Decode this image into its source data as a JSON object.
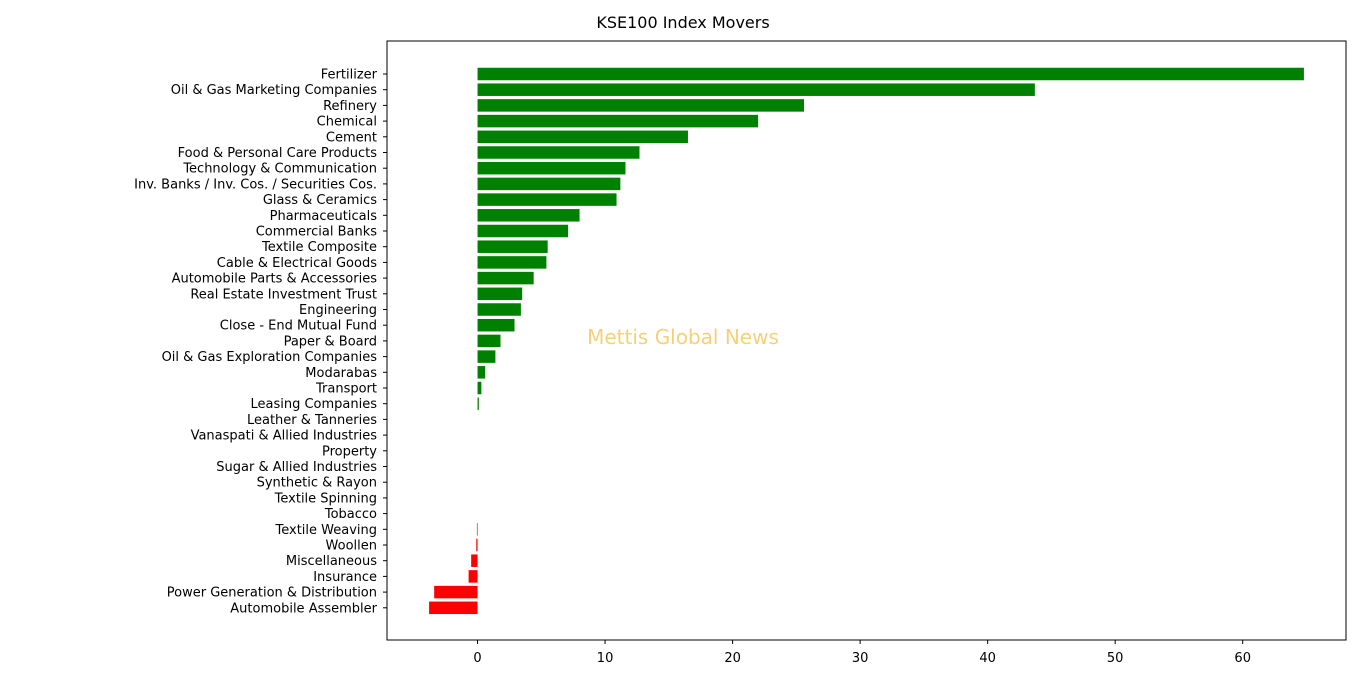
{
  "chart_data": {
    "type": "bar",
    "orientation": "horizontal",
    "title": "KSE100 Index Movers",
    "watermark": "Mettis Global News",
    "xlabel": "",
    "ylabel": "",
    "xlim": [
      -7.1,
      68.1
    ],
    "xticks": [
      0,
      10,
      20,
      30,
      40,
      50,
      60
    ],
    "grid": false,
    "legend": "none",
    "colors": {
      "positive": "#008000",
      "negative": "#ff0000",
      "axis": "#000000",
      "background": "#ffffff"
    },
    "categories": [
      "Fertilizer",
      "Oil & Gas Marketing Companies",
      "Refinery",
      "Chemical",
      "Cement",
      "Food & Personal Care Products",
      "Technology & Communication",
      "Inv. Banks / Inv. Cos. / Securities Cos.",
      "Glass & Ceramics",
      "Pharmaceuticals",
      "Commercial Banks",
      "Textile Composite",
      "Cable & Electrical Goods",
      "Automobile Parts & Accessories",
      "Real Estate Investment Trust",
      "Engineering",
      "Close - End Mutual Fund",
      "Paper & Board",
      "Oil & Gas Exploration Companies",
      "Modarabas",
      "Transport",
      "Leasing Companies",
      "Leather & Tanneries",
      "Vanaspati & Allied Industries",
      "Property",
      "Sugar & Allied Industries",
      "Synthetic & Rayon",
      "Textile Spinning",
      "Tobacco",
      "Textile Weaving",
      "Woollen",
      "Miscellaneous",
      "Insurance",
      "Power Generation & Distribution",
      "Automobile Assembler"
    ],
    "values": [
      64.8,
      43.7,
      25.6,
      22.0,
      16.5,
      12.7,
      11.6,
      11.2,
      10.9,
      8.0,
      7.1,
      5.5,
      5.4,
      4.4,
      3.5,
      3.4,
      2.9,
      1.8,
      1.4,
      0.6,
      0.3,
      0.1,
      0.0,
      0.0,
      0.0,
      0.0,
      0.0,
      0.0,
      0.0,
      -0.05,
      -0.1,
      -0.5,
      -0.7,
      -3.4,
      -3.8
    ]
  }
}
